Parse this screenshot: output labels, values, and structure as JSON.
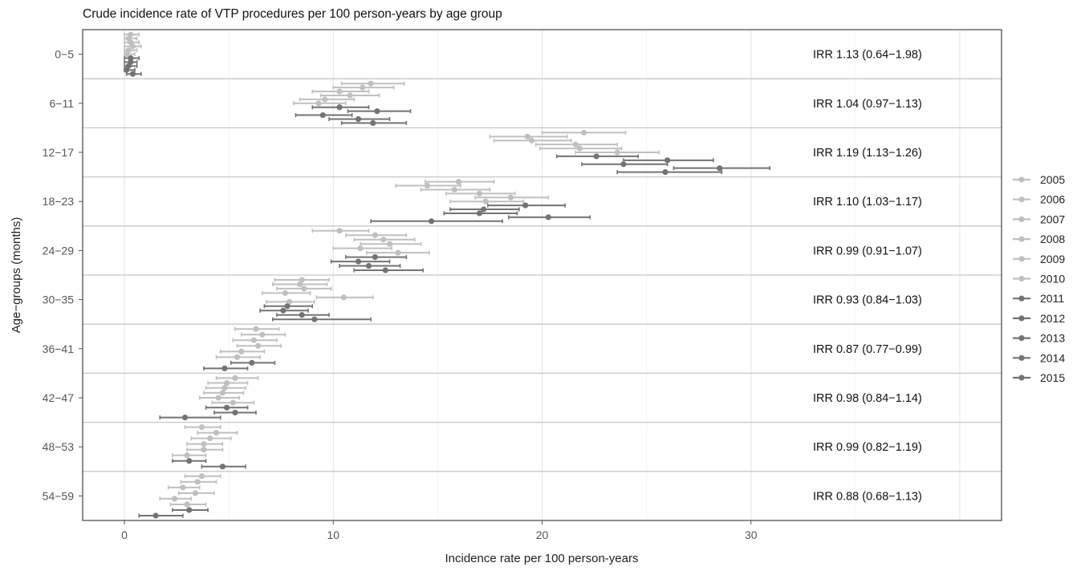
{
  "chart_data": {
    "type": "scatter",
    "title": "Crude incidence rate of VTP procedures per 100 person-years by age group",
    "xlabel": "Incidence rate per 100 person-years",
    "ylabel": "Age−groups (months)",
    "xlim": [
      -2,
      42
    ],
    "x_ticks": [
      "0",
      "10",
      "20",
      "30"
    ],
    "grid": true,
    "legend_position": "right",
    "colors": {
      "early": "#c0c0c0",
      "late": "#737373",
      "group_divider": "#c8c8c8",
      "border": "#444444"
    },
    "legend": [
      {
        "label": "2005",
        "shade": "early"
      },
      {
        "label": "2006",
        "shade": "early"
      },
      {
        "label": "2007",
        "shade": "early"
      },
      {
        "label": "2008",
        "shade": "early"
      },
      {
        "label": "2009",
        "shade": "early"
      },
      {
        "label": "2010",
        "shade": "early"
      },
      {
        "label": "2011",
        "shade": "late"
      },
      {
        "label": "2012",
        "shade": "late"
      },
      {
        "label": "2013",
        "shade": "late"
      },
      {
        "label": "2014",
        "shade": "late"
      },
      {
        "label": "2015",
        "shade": "late"
      }
    ],
    "groups": [
      {
        "label": "0−5",
        "irr": "IRR 1.13 (0.64−1.98)",
        "points": [
          {
            "year": "2005",
            "rate": 0.3,
            "low": 0.0,
            "high": 0.7
          },
          {
            "year": "2006",
            "rate": 0.2,
            "low": 0.0,
            "high": 0.6
          },
          {
            "year": "2007",
            "rate": 0.3,
            "low": 0.0,
            "high": 0.7
          },
          {
            "year": "2008",
            "rate": 0.4,
            "low": 0.0,
            "high": 0.8
          },
          {
            "year": "2009",
            "rate": 0.2,
            "low": 0.0,
            "high": 0.6
          },
          {
            "year": "2010",
            "rate": 0.1,
            "low": 0.0,
            "high": 0.5
          },
          {
            "year": "2011",
            "rate": 0.3,
            "low": 0.0,
            "high": 0.7
          },
          {
            "year": "2012",
            "rate": 0.3,
            "low": 0.0,
            "high": 0.6
          },
          {
            "year": "2013",
            "rate": 0.2,
            "low": 0.0,
            "high": 0.6
          },
          {
            "year": "2014",
            "rate": 0.1,
            "low": 0.0,
            "high": 0.5
          },
          {
            "year": "2015",
            "rate": 0.4,
            "low": 0.1,
            "high": 0.8
          }
        ]
      },
      {
        "label": "6−11",
        "irr": "IRR 1.04 (0.97−1.13)",
        "points": [
          {
            "year": "2005",
            "rate": 11.8,
            "low": 10.4,
            "high": 13.4
          },
          {
            "year": "2006",
            "rate": 11.4,
            "low": 10.0,
            "high": 12.9
          },
          {
            "year": "2007",
            "rate": 10.3,
            "low": 9.0,
            "high": 11.7
          },
          {
            "year": "2008",
            "rate": 10.8,
            "low": 9.4,
            "high": 12.2
          },
          {
            "year": "2009",
            "rate": 9.6,
            "low": 8.4,
            "high": 11.0
          },
          {
            "year": "2010",
            "rate": 9.3,
            "low": 8.1,
            "high": 10.6
          },
          {
            "year": "2011",
            "rate": 10.3,
            "low": 9.0,
            "high": 11.7
          },
          {
            "year": "2012",
            "rate": 12.1,
            "low": 10.7,
            "high": 13.7
          },
          {
            "year": "2013",
            "rate": 9.5,
            "low": 8.2,
            "high": 10.9
          },
          {
            "year": "2014",
            "rate": 11.2,
            "low": 9.8,
            "high": 12.7
          },
          {
            "year": "2015",
            "rate": 11.9,
            "low": 10.4,
            "high": 13.5
          }
        ]
      },
      {
        "label": "12−17",
        "irr": "IRR 1.19 (1.13−1.26)",
        "points": [
          {
            "year": "2005",
            "rate": 22.0,
            "low": 20.0,
            "high": 24.0
          },
          {
            "year": "2006",
            "rate": 19.3,
            "low": 17.5,
            "high": 21.2
          },
          {
            "year": "2007",
            "rate": 19.5,
            "low": 17.7,
            "high": 21.4
          },
          {
            "year": "2008",
            "rate": 21.6,
            "low": 19.7,
            "high": 23.6
          },
          {
            "year": "2009",
            "rate": 21.8,
            "low": 19.9,
            "high": 23.8
          },
          {
            "year": "2010",
            "rate": 23.6,
            "low": 21.6,
            "high": 25.6
          },
          {
            "year": "2011",
            "rate": 22.6,
            "low": 20.7,
            "high": 24.6
          },
          {
            "year": "2012",
            "rate": 26.0,
            "low": 23.9,
            "high": 28.2
          },
          {
            "year": "2013",
            "rate": 23.9,
            "low": 21.9,
            "high": 26.0
          },
          {
            "year": "2014",
            "rate": 28.5,
            "low": 26.3,
            "high": 30.9
          },
          {
            "year": "2015",
            "rate": 25.9,
            "low": 23.6,
            "high": 28.6
          }
        ]
      },
      {
        "label": "18−23",
        "irr": "IRR 1.10 (1.03−1.17)",
        "points": [
          {
            "year": "2005",
            "rate": 16.0,
            "low": 14.4,
            "high": 17.7
          },
          {
            "year": "2006",
            "rate": 14.5,
            "low": 13.0,
            "high": 16.1
          },
          {
            "year": "2007",
            "rate": 15.8,
            "low": 14.2,
            "high": 17.5
          },
          {
            "year": "2008",
            "rate": 17.0,
            "low": 15.4,
            "high": 18.7
          },
          {
            "year": "2009",
            "rate": 18.5,
            "low": 16.8,
            "high": 20.3
          },
          {
            "year": "2010",
            "rate": 17.3,
            "low": 15.6,
            "high": 19.1
          },
          {
            "year": "2011",
            "rate": 19.2,
            "low": 17.4,
            "high": 21.1
          },
          {
            "year": "2012",
            "rate": 17.2,
            "low": 15.6,
            "high": 18.9
          },
          {
            "year": "2013",
            "rate": 17.0,
            "low": 15.3,
            "high": 18.8
          },
          {
            "year": "2014",
            "rate": 20.3,
            "low": 18.4,
            "high": 22.3
          },
          {
            "year": "2015",
            "rate": 14.7,
            "low": 11.8,
            "high": 18.1
          }
        ]
      },
      {
        "label": "24−29",
        "irr": "IRR 0.99 (0.91−1.07)",
        "points": [
          {
            "year": "2005",
            "rate": 10.3,
            "low": 9.0,
            "high": 11.7
          },
          {
            "year": "2006",
            "rate": 12.0,
            "low": 10.6,
            "high": 13.5
          },
          {
            "year": "2007",
            "rate": 12.4,
            "low": 11.0,
            "high": 13.9
          },
          {
            "year": "2008",
            "rate": 12.7,
            "low": 11.3,
            "high": 14.2
          },
          {
            "year": "2009",
            "rate": 11.3,
            "low": 10.0,
            "high": 12.8
          },
          {
            "year": "2010",
            "rate": 13.1,
            "low": 11.6,
            "high": 14.6
          },
          {
            "year": "2011",
            "rate": 12.0,
            "low": 10.6,
            "high": 13.5
          },
          {
            "year": "2012",
            "rate": 11.2,
            "low": 9.9,
            "high": 12.7
          },
          {
            "year": "2013",
            "rate": 11.7,
            "low": 10.3,
            "high": 13.2
          },
          {
            "year": "2014",
            "rate": 12.5,
            "low": 11.0,
            "high": 14.3
          },
          {
            "year": "2015",
            "rate": null,
            "low": null,
            "high": null
          }
        ]
      },
      {
        "label": "30−35",
        "irr": "IRR 0.93 (0.84−1.03)",
        "points": [
          {
            "year": "2005",
            "rate": 8.5,
            "low": 7.2,
            "high": 9.8
          },
          {
            "year": "2006",
            "rate": 8.4,
            "low": 7.1,
            "high": 9.7
          },
          {
            "year": "2007",
            "rate": 8.6,
            "low": 7.3,
            "high": 9.9
          },
          {
            "year": "2008",
            "rate": 7.7,
            "low": 6.6,
            "high": 8.9
          },
          {
            "year": "2009",
            "rate": 10.5,
            "low": 9.2,
            "high": 11.9
          },
          {
            "year": "2010",
            "rate": 7.9,
            "low": 6.8,
            "high": 9.1
          },
          {
            "year": "2011",
            "rate": 7.8,
            "low": 6.7,
            "high": 9.0
          },
          {
            "year": "2012",
            "rate": 7.6,
            "low": 6.5,
            "high": 8.8
          },
          {
            "year": "2013",
            "rate": 8.5,
            "low": 7.3,
            "high": 9.8
          },
          {
            "year": "2014",
            "rate": 9.1,
            "low": 7.1,
            "high": 11.8
          },
          {
            "year": "2015",
            "rate": null,
            "low": null,
            "high": null
          }
        ]
      },
      {
        "label": "36−41",
        "irr": "IRR 0.87 (0.77−0.99)",
        "points": [
          {
            "year": "2005",
            "rate": 6.3,
            "low": 5.3,
            "high": 7.4
          },
          {
            "year": "2006",
            "rate": 6.6,
            "low": 5.6,
            "high": 7.7
          },
          {
            "year": "2007",
            "rate": 6.2,
            "low": 5.2,
            "high": 7.3
          },
          {
            "year": "2008",
            "rate": 6.4,
            "low": 5.4,
            "high": 7.5
          },
          {
            "year": "2009",
            "rate": 5.6,
            "low": 4.6,
            "high": 6.7
          },
          {
            "year": "2010",
            "rate": 5.4,
            "low": 4.4,
            "high": 6.5
          },
          {
            "year": "2011",
            "rate": 6.1,
            "low": 5.1,
            "high": 7.2
          },
          {
            "year": "2012",
            "rate": 4.8,
            "low": 3.8,
            "high": 5.9
          },
          {
            "year": "2013",
            "rate": null,
            "low": null,
            "high": null
          },
          {
            "year": "2014",
            "rate": null,
            "low": null,
            "high": null
          },
          {
            "year": "2015",
            "rate": null,
            "low": null,
            "high": null
          }
        ]
      },
      {
        "label": "42−47",
        "irr": "IRR 0.98 (0.84−1.14)",
        "points": [
          {
            "year": "2005",
            "rate": 5.3,
            "low": 4.4,
            "high": 6.4
          },
          {
            "year": "2006",
            "rate": 4.9,
            "low": 4.0,
            "high": 5.9
          },
          {
            "year": "2007",
            "rate": 4.8,
            "low": 3.9,
            "high": 5.8
          },
          {
            "year": "2008",
            "rate": 4.7,
            "low": 3.8,
            "high": 5.7
          },
          {
            "year": "2009",
            "rate": 4.5,
            "low": 3.6,
            "high": 5.5
          },
          {
            "year": "2010",
            "rate": 5.2,
            "low": 4.2,
            "high": 6.2
          },
          {
            "year": "2011",
            "rate": 4.9,
            "low": 3.9,
            "high": 5.9
          },
          {
            "year": "2012",
            "rate": 5.3,
            "low": 4.3,
            "high": 6.3
          },
          {
            "year": "2013",
            "rate": 2.9,
            "low": 1.7,
            "high": 4.6
          },
          {
            "year": "2014",
            "rate": null,
            "low": null,
            "high": null
          },
          {
            "year": "2015",
            "rate": null,
            "low": null,
            "high": null
          }
        ]
      },
      {
        "label": "48−53",
        "irr": "IRR 0.99 (0.82−1.19)",
        "points": [
          {
            "year": "2005",
            "rate": 3.7,
            "low": 2.9,
            "high": 4.6
          },
          {
            "year": "2006",
            "rate": 4.4,
            "low": 3.5,
            "high": 5.4
          },
          {
            "year": "2007",
            "rate": 4.1,
            "low": 3.2,
            "high": 5.1
          },
          {
            "year": "2008",
            "rate": 3.8,
            "low": 3.0,
            "high": 4.7
          },
          {
            "year": "2009",
            "rate": 3.8,
            "low": 3.0,
            "high": 4.7
          },
          {
            "year": "2010",
            "rate": 3.0,
            "low": 2.3,
            "high": 3.9
          },
          {
            "year": "2011",
            "rate": 3.1,
            "low": 2.3,
            "high": 3.9
          },
          {
            "year": "2012",
            "rate": 4.7,
            "low": 3.7,
            "high": 5.8
          },
          {
            "year": "2013",
            "rate": null,
            "low": null,
            "high": null
          },
          {
            "year": "2014",
            "rate": null,
            "low": null,
            "high": null
          },
          {
            "year": "2015",
            "rate": null,
            "low": null,
            "high": null
          }
        ]
      },
      {
        "label": "54−59",
        "irr": "IRR 0.88 (0.68−1.13)",
        "points": [
          {
            "year": "2005",
            "rate": 3.7,
            "low": 2.9,
            "high": 4.6
          },
          {
            "year": "2006",
            "rate": 3.5,
            "low": 2.7,
            "high": 4.4
          },
          {
            "year": "2007",
            "rate": 2.8,
            "low": 2.1,
            "high": 3.6
          },
          {
            "year": "2008",
            "rate": 3.4,
            "low": 2.6,
            "high": 4.3
          },
          {
            "year": "2009",
            "rate": 2.4,
            "low": 1.7,
            "high": 3.2
          },
          {
            "year": "2010",
            "rate": 3.0,
            "low": 2.2,
            "high": 3.9
          },
          {
            "year": "2011",
            "rate": 3.1,
            "low": 2.3,
            "high": 4.0
          },
          {
            "year": "2012",
            "rate": 1.5,
            "low": 0.7,
            "high": 2.8
          },
          {
            "year": "2013",
            "rate": null,
            "low": null,
            "high": null
          },
          {
            "year": "2014",
            "rate": null,
            "low": null,
            "high": null
          },
          {
            "year": "2015",
            "rate": null,
            "low": null,
            "high": null
          }
        ]
      }
    ]
  }
}
